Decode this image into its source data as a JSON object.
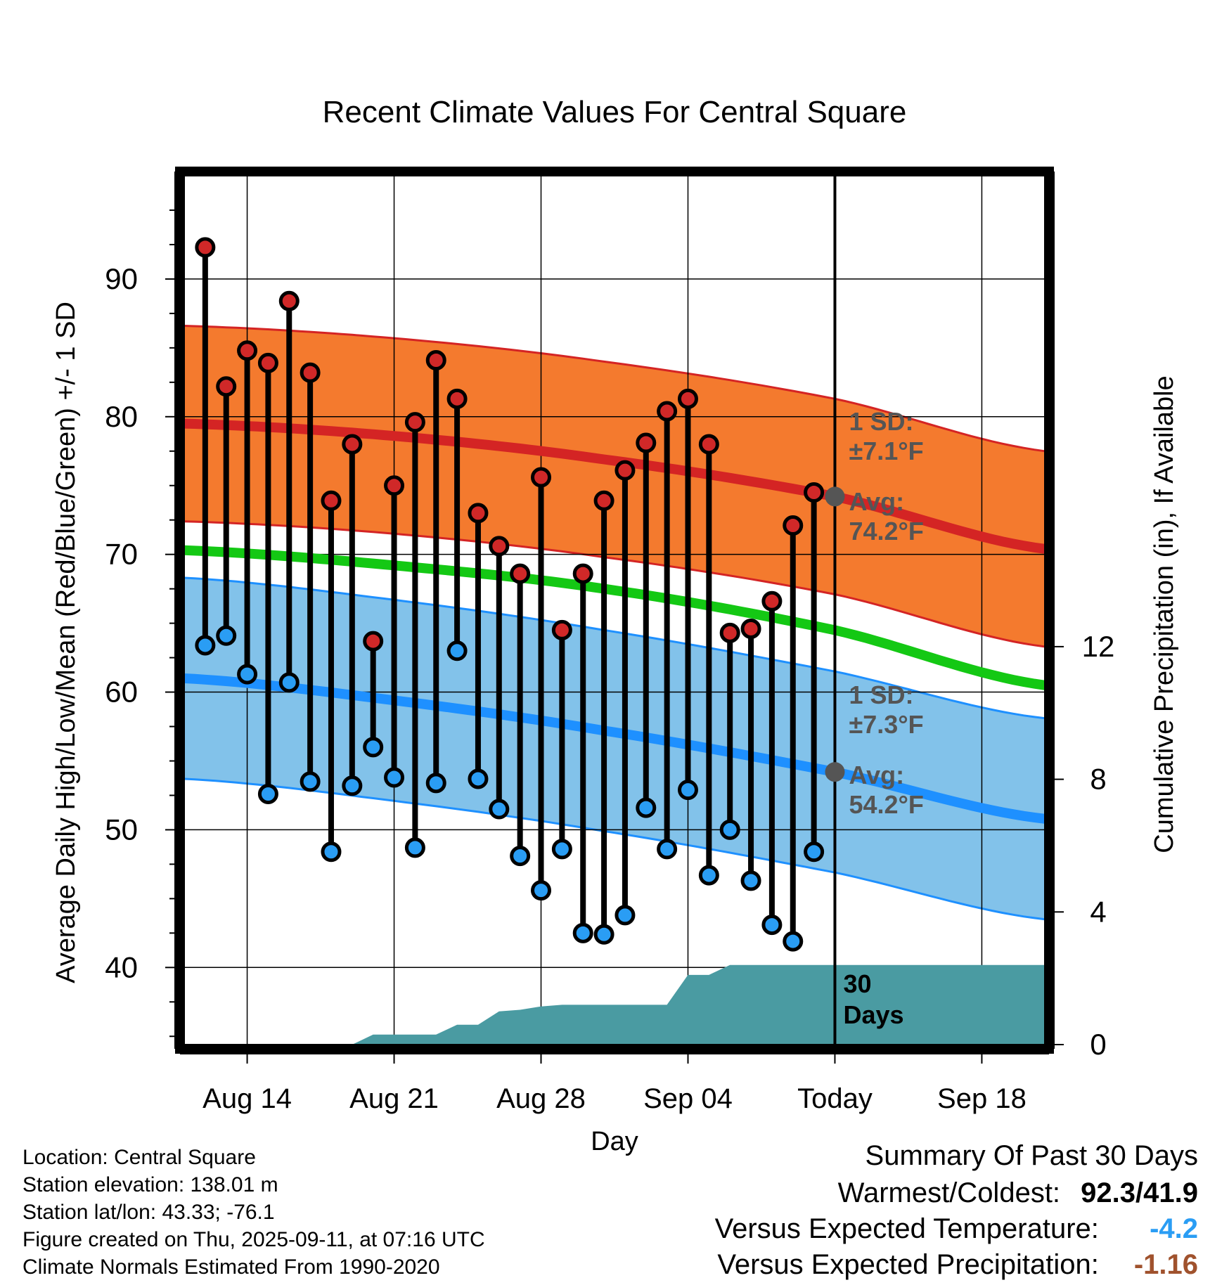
{
  "chart_data": {
    "type": "line",
    "title": "Recent Climate Values For Central Square",
    "xlabel": "Day",
    "ylabel": "Average Daily High/Low/Mean (Red/Blue/Green) +/- 1 SD",
    "y2label": "Cumulative Precipitation (in), If Available",
    "ylim": [
      34.4,
      97.5
    ],
    "y_ticks": [
      40,
      50,
      60,
      70,
      80,
      90
    ],
    "y2lim": [
      0,
      26.2
    ],
    "y2_ticks": [
      0,
      4,
      8,
      12
    ],
    "x_dates": [
      "Aug 12",
      "Aug 13",
      "Aug 14",
      "Aug 15",
      "Aug 16",
      "Aug 17",
      "Aug 18",
      "Aug 19",
      "Aug 20",
      "Aug 21",
      "Aug 22",
      "Aug 23",
      "Aug 24",
      "Aug 25",
      "Aug 26",
      "Aug 27",
      "Aug 28",
      "Aug 29",
      "Aug 30",
      "Aug 31",
      "Sep 01",
      "Sep 02",
      "Sep 03",
      "Sep 04",
      "Sep 05",
      "Sep 06",
      "Sep 07",
      "Sep 08",
      "Sep 09",
      "Sep 10",
      "Sep 11"
    ],
    "x_ticks": [
      {
        "date": "Aug 14",
        "label": "Aug 14"
      },
      {
        "date": "Aug 21",
        "label": "Aug 21"
      },
      {
        "date": "Aug 28",
        "label": "Aug 28"
      },
      {
        "date": "Sep 04",
        "label": "Sep 04"
      },
      {
        "date": "Sep 11",
        "label": "Today"
      },
      {
        "date": "Sep 18",
        "label": "Sep 18"
      }
    ],
    "xlim": [
      "Aug 11",
      "Sep 21"
    ],
    "grid": true,
    "today": "Sep 11",
    "observed_dates": [
      "Aug 12",
      "Aug 13",
      "Aug 14",
      "Aug 15",
      "Aug 16",
      "Aug 17",
      "Aug 18",
      "Aug 19",
      "Aug 20",
      "Aug 21",
      "Aug 22",
      "Aug 23",
      "Aug 24",
      "Aug 25",
      "Aug 26",
      "Aug 27",
      "Aug 28",
      "Aug 29",
      "Aug 30",
      "Aug 31",
      "Sep 01",
      "Sep 02",
      "Sep 03",
      "Sep 04",
      "Sep 05",
      "Sep 06",
      "Sep 07",
      "Sep 08",
      "Sep 09",
      "Sep 10"
    ],
    "daily_high": [
      92.3,
      82.2,
      84.8,
      83.9,
      88.4,
      83.2,
      73.9,
      78.0,
      63.7,
      75.0,
      79.6,
      84.1,
      81.3,
      73.0,
      70.6,
      68.6,
      75.6,
      64.5,
      68.6,
      73.9,
      76.1,
      78.1,
      80.4,
      81.3,
      78.0,
      64.3,
      64.6,
      66.6,
      72.1,
      74.5
    ],
    "daily_low": [
      63.4,
      64.1,
      61.3,
      52.6,
      60.7,
      53.5,
      48.4,
      53.2,
      56.0,
      53.8,
      48.7,
      53.4,
      63.0,
      53.7,
      51.5,
      48.1,
      45.6,
      48.6,
      42.5,
      42.4,
      43.8,
      51.6,
      48.6,
      52.9,
      46.7,
      50.0,
      46.3,
      43.1,
      41.9,
      48.4
    ],
    "normal_dates": [
      "Aug 11",
      "Aug 21",
      "Aug 31",
      "Sep 11",
      "Sep 21"
    ],
    "normal_high": [
      79.5,
      78.6,
      76.9,
      74.2,
      70.4
    ],
    "normal_low": [
      61.0,
      59.4,
      57.2,
      54.2,
      50.8
    ],
    "normal_mean": [
      70.3,
      69.2,
      67.5,
      64.5,
      60.5
    ],
    "high_sd": 7.1,
    "low_sd": 7.3,
    "precip_dates": [
      "Aug 11",
      "Aug 19",
      "Aug 20",
      "Aug 23",
      "Aug 24",
      "Aug 25",
      "Aug 26",
      "Aug 27",
      "Aug 28",
      "Aug 29",
      "Sep 02",
      "Sep 03",
      "Sep 04",
      "Sep 05",
      "Sep 06",
      "Sep 21"
    ],
    "cumulative_precip": [
      0,
      0,
      0.3,
      0.3,
      0.6,
      0.6,
      1.0,
      1.05,
      1.15,
      1.2,
      1.2,
      1.2,
      2.1,
      2.1,
      2.4,
      2.4
    ],
    "annotations": {
      "high_sd_label": "1 SD:",
      "high_sd_value": "±7.1°F",
      "high_avg_label": "Avg:",
      "high_avg_value": "74.2°F",
      "low_sd_label": "1 SD:",
      "low_sd_value": "±7.3°F",
      "low_avg_label": "Avg:",
      "low_avg_value": "54.2°F",
      "window_line1": "30",
      "window_line2": "Days"
    },
    "colors": {
      "high_band": "#f47a2e",
      "high_line": "#d42424",
      "low_band": "#82c2ea",
      "low_line": "#1e90ff",
      "mean_line": "#14c814",
      "precip": "#4a9ba2",
      "high_marker": "#d02828",
      "low_marker": "#2a9df4",
      "annotation": "#555555",
      "avg_dot": "#555555"
    }
  },
  "info": {
    "location": "Location: Central Square",
    "elevation": "Station elevation: 138.01 m",
    "latlon": "Station lat/lon: 43.33; -76.1",
    "created": "Figure created on Thu, 2025-09-11, at 07:16 UTC",
    "normals": "Climate Normals Estimated From 1990-2020"
  },
  "summary": {
    "heading": "Summary Of Past 30 Days",
    "warm_cold_label": "Warmest/Coldest:",
    "warm_cold_value": "92.3/41.9",
    "temp_label": "Versus Expected Temperature:",
    "temp_value": "-4.2",
    "temp_color": "#2a9df4",
    "precip_label": "Versus Expected Precipitation:",
    "precip_value": "-1.16",
    "precip_color": "#a0522d"
  }
}
